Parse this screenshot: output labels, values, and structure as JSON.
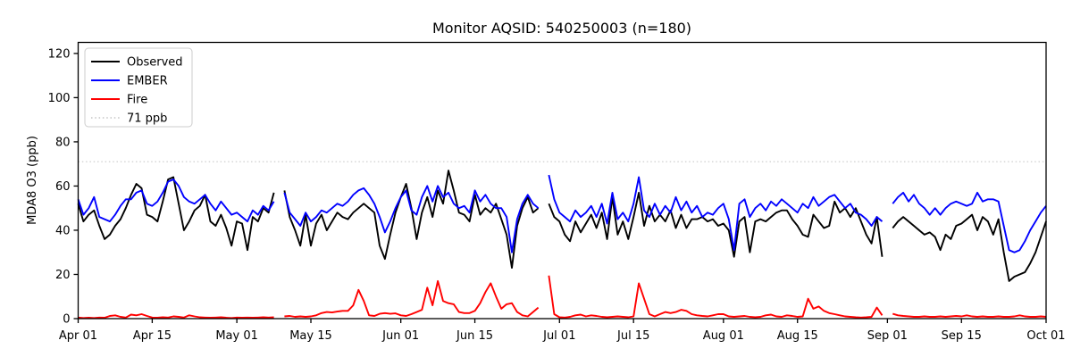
{
  "chart_data": {
    "type": "line",
    "title": "Monitor AQSID: 540250003 (n=180)",
    "xlabel": "",
    "ylabel": "MDA8 O3 (ppb)",
    "ylim": [
      0,
      125
    ],
    "yticks": [
      0,
      20,
      40,
      60,
      80,
      100,
      120
    ],
    "x_unit": "days since Apr 01",
    "x_range_days": 183,
    "xticks": [
      {
        "day": 0,
        "label": "Apr 01"
      },
      {
        "day": 14,
        "label": "Apr 15"
      },
      {
        "day": 30,
        "label": "May 01"
      },
      {
        "day": 44,
        "label": "May 15"
      },
      {
        "day": 61,
        "label": "Jun 01"
      },
      {
        "day": 75,
        "label": "Jun 15"
      },
      {
        "day": 91,
        "label": "Jul 01"
      },
      {
        "day": 105,
        "label": "Jul 15"
      },
      {
        "day": 122,
        "label": "Aug 01"
      },
      {
        "day": 136,
        "label": "Aug 15"
      },
      {
        "day": 153,
        "label": "Sep 01"
      },
      {
        "day": 167,
        "label": "Sep 15"
      },
      {
        "day": 183,
        "label": "Oct 01"
      }
    ],
    "grid": false,
    "legend_position": "upper left",
    "threshold": {
      "value": 71,
      "label": "71 ppb",
      "color": "#d3d3d3",
      "style": "dotted"
    },
    "series": [
      {
        "name": "Observed",
        "color": "#000000",
        "values": [
          52,
          44,
          47,
          49,
          42,
          36,
          38,
          42,
          45,
          50,
          56,
          61,
          59,
          47,
          46,
          44,
          53,
          63,
          64,
          52,
          40,
          44,
          49,
          51,
          56,
          44,
          42,
          47,
          41,
          33,
          44,
          43,
          31,
          46,
          44,
          50,
          48,
          57,
          null,
          58,
          46,
          40,
          33,
          47,
          33,
          43,
          47,
          40,
          44,
          48,
          46,
          45,
          48,
          50,
          52,
          50,
          48,
          33,
          27,
          38,
          48,
          55,
          61,
          50,
          36,
          48,
          55,
          46,
          58,
          52,
          67,
          58,
          48,
          47,
          44,
          56,
          47,
          50,
          48,
          52,
          45,
          38,
          23,
          42,
          50,
          55,
          48,
          50,
          null,
          52,
          46,
          44,
          38,
          35,
          44,
          39,
          43,
          47,
          41,
          48,
          36,
          55,
          38,
          44,
          36,
          46,
          57,
          42,
          51,
          44,
          47,
          44,
          49,
          41,
          47,
          41,
          45,
          45,
          46,
          44,
          45,
          42,
          43,
          40,
          28,
          44,
          46,
          30,
          44,
          45,
          44,
          46,
          48,
          49,
          49,
          45,
          42,
          38,
          37,
          47,
          44,
          41,
          42,
          53,
          48,
          50,
          46,
          50,
          44,
          38,
          34,
          46,
          28,
          null,
          41,
          44,
          46,
          44,
          42,
          40,
          38,
          39,
          37,
          31,
          38,
          36,
          42,
          43,
          45,
          47,
          40,
          46,
          44,
          38,
          45,
          30,
          17,
          19,
          20,
          21,
          25,
          30,
          37,
          44
        ]
      },
      {
        "name": "EMBER",
        "color": "#0000ff",
        "values": [
          54,
          47,
          50,
          55,
          46,
          45,
          44,
          47,
          51,
          54,
          54,
          57,
          58,
          52,
          51,
          53,
          57,
          62,
          63,
          60,
          55,
          53,
          52,
          54,
          56,
          52,
          49,
          53,
          50,
          47,
          48,
          46,
          44,
          49,
          47,
          51,
          49,
          53,
          null,
          57,
          48,
          45,
          42,
          48,
          44,
          46,
          49,
          48,
          50,
          52,
          51,
          53,
          56,
          58,
          59,
          56,
          52,
          46,
          39,
          44,
          50,
          55,
          58,
          49,
          47,
          55,
          60,
          53,
          60,
          55,
          57,
          52,
          50,
          51,
          48,
          58,
          53,
          56,
          52,
          50,
          50,
          46,
          30,
          45,
          52,
          56,
          52,
          50,
          null,
          65,
          54,
          48,
          46,
          44,
          49,
          46,
          48,
          51,
          46,
          52,
          43,
          57,
          45,
          48,
          44,
          52,
          64,
          49,
          46,
          52,
          47,
          51,
          48,
          55,
          49,
          53,
          48,
          51,
          46,
          48,
          47,
          50,
          52,
          45,
          31,
          52,
          54,
          46,
          50,
          52,
          49,
          53,
          51,
          54,
          52,
          50,
          48,
          52,
          50,
          55,
          51,
          53,
          55,
          56,
          53,
          50,
          52,
          48,
          47,
          45,
          42,
          46,
          44,
          null,
          52,
          55,
          57,
          53,
          56,
          52,
          50,
          47,
          50,
          47,
          50,
          52,
          53,
          52,
          51,
          52,
          57,
          53,
          54,
          54,
          53,
          42,
          31,
          30,
          31,
          35,
          40,
          44,
          48,
          51
        ]
      },
      {
        "name": "Fire",
        "color": "#ff0000",
        "values": [
          0.5,
          0.3,
          0.4,
          0.3,
          0.5,
          0.4,
          1.2,
          1.5,
          0.8,
          0.5,
          1.8,
          1.5,
          2.0,
          1.2,
          0.5,
          0.4,
          0.6,
          0.5,
          1.0,
          0.8,
          0.5,
          1.5,
          1.0,
          0.6,
          0.5,
          0.4,
          0.5,
          0.6,
          0.4,
          0.3,
          0.5,
          0.4,
          0.5,
          0.4,
          0.5,
          0.6,
          0.5,
          0.6,
          null,
          1.0,
          1.2,
          0.8,
          1.0,
          0.8,
          1.0,
          1.5,
          2.5,
          3.0,
          2.8,
          3.2,
          3.5,
          3.5,
          6.0,
          13.0,
          8.0,
          1.5,
          1.2,
          2.2,
          2.5,
          2.2,
          2.4,
          1.5,
          1.2,
          2.0,
          3.0,
          4.0,
          14.0,
          6.0,
          17.0,
          8.0,
          7.0,
          6.5,
          3.0,
          2.5,
          2.5,
          3.5,
          7.0,
          12.0,
          16.0,
          10.0,
          4.5,
          6.5,
          7.0,
          3.0,
          1.5,
          1.0,
          3.0,
          5.0,
          null,
          19.5,
          2.0,
          0.6,
          0.5,
          0.8,
          1.5,
          1.8,
          1.0,
          1.5,
          1.2,
          0.8,
          0.6,
          0.8,
          1.0,
          0.8,
          0.6,
          1.0,
          16.0,
          9.0,
          2.0,
          1.0,
          2.0,
          3.0,
          2.5,
          3.0,
          4.0,
          3.5,
          2.0,
          1.5,
          1.2,
          1.0,
          1.5,
          2.0,
          2.0,
          1.0,
          0.8,
          1.0,
          1.2,
          0.8,
          0.6,
          0.8,
          1.5,
          1.8,
          1.0,
          0.8,
          1.5,
          1.2,
          0.8,
          1.0,
          9.0,
          4.5,
          5.5,
          3.5,
          2.5,
          2.0,
          1.5,
          1.0,
          0.8,
          0.6,
          0.5,
          0.6,
          0.8,
          5.0,
          1.5,
          null,
          2.2,
          1.5,
          1.2,
          1.0,
          0.8,
          0.8,
          1.0,
          0.8,
          0.8,
          1.0,
          0.8,
          1.0,
          1.2,
          1.0,
          1.5,
          1.0,
          0.8,
          1.0,
          0.8,
          0.8,
          1.0,
          0.8,
          0.8,
          1.0,
          1.5,
          1.0,
          0.8,
          0.8,
          1.0,
          0.8
        ]
      }
    ]
  }
}
